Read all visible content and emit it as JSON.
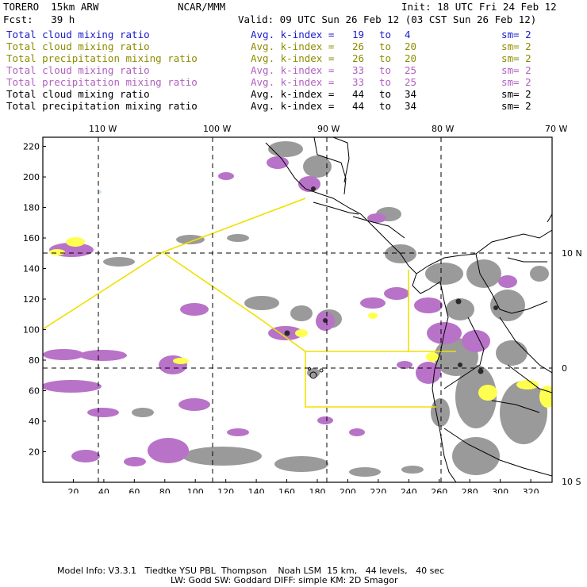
{
  "header": {
    "model": "TORERO  15km ARW",
    "org": "NCAR/MMM",
    "init": "Init: 18 UTC Fri 24 Feb 12",
    "fcst": "Fcst:   39 h",
    "valid": "Valid: 09 UTC Sun 26 Feb 12 (03 CST Sun 26 Feb 12)"
  },
  "fields": [
    {
      "name": "Total cloud mixing ratio",
      "index_label": "Avg. k-index =",
      "from": "19",
      "to_label": "to",
      "to": "4",
      "sm": "sm= 2",
      "color": "#1a1acc"
    },
    {
      "name": "Total cloud mixing ratio",
      "index_label": "Avg. k-index =",
      "from": "26",
      "to_label": "to",
      "to": "20",
      "sm": "sm= 2",
      "color": "#8c8c00"
    },
    {
      "name": "Total precipitation mixing ratio",
      "index_label": "Avg. k-index =",
      "from": "26",
      "to_label": "to",
      "to": "20",
      "sm": "sm= 2",
      "color": "#8c8c00"
    },
    {
      "name": "Total cloud mixing ratio",
      "index_label": "Avg. k-index =",
      "from": "33",
      "to_label": "to",
      "to": "25",
      "sm": "sm= 2",
      "color": "#b060c0"
    },
    {
      "name": "Total precipitation mixing ratio",
      "index_label": "Avg. k-index =",
      "from": "33",
      "to_label": "to",
      "to": "25",
      "sm": "sm= 2",
      "color": "#b060c0"
    },
    {
      "name": "Total cloud mixing ratio",
      "index_label": "Avg. k-index =",
      "from": "44",
      "to_label": "to",
      "to": "34",
      "sm": "sm= 2",
      "color": "#000000"
    },
    {
      "name": "Total precipitation mixing ratio",
      "index_label": "Avg. k-index =",
      "from": "44",
      "to_label": "to",
      "to": "34",
      "sm": "sm= 2",
      "color": "#000000"
    }
  ],
  "map": {
    "lon_labels": [
      "110 W",
      "100 W",
      "90 W",
      "80 W",
      "70 W"
    ],
    "lat_labels": [
      "10 N",
      "0",
      "10 S"
    ],
    "x_ticks": [
      "20",
      "40",
      "60",
      "80",
      "100",
      "120",
      "140",
      "160",
      "180",
      "200",
      "220",
      "240",
      "260",
      "280",
      "300",
      "320"
    ],
    "y_ticks": [
      "20",
      "40",
      "60",
      "80",
      "100",
      "120",
      "140",
      "160",
      "180",
      "200",
      "220"
    ],
    "colors": {
      "purple": "#b060c0",
      "gray": "#9a9a9a",
      "dark": "#2a2a2a",
      "yellow": "#ffff40",
      "boxline": "#f0e000"
    }
  },
  "footer": {
    "line1": "Model Info: V3.3.1   Tiedtke YSU PBL  Thompson    Noah LSM  15 km,   44 levels,   40 sec",
    "line2": "LW: Godd SW: Goddard DIFF: simple KM: 2D Smagor"
  }
}
